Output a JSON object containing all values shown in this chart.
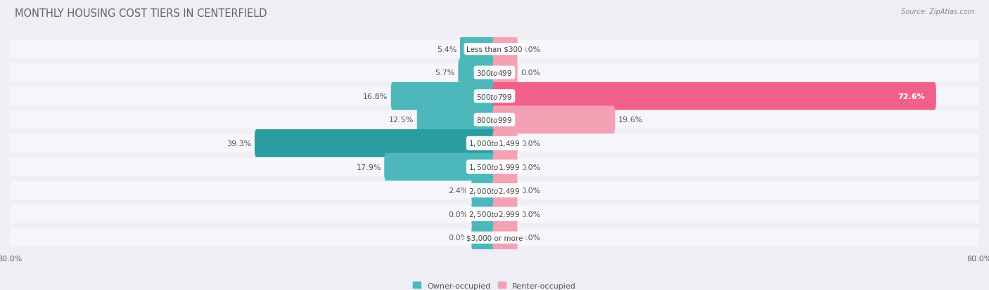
{
  "title": "MONTHLY HOUSING COST TIERS IN CENTERFIELD",
  "source": "Source: ZipAtlas.com",
  "categories": [
    "Less than $300",
    "$300 to $499",
    "$500 to $799",
    "$800 to $999",
    "$1,000 to $1,499",
    "$1,500 to $1,999",
    "$2,000 to $2,499",
    "$2,500 to $2,999",
    "$3,000 or more"
  ],
  "owner_values": [
    5.4,
    5.7,
    16.8,
    12.5,
    39.3,
    17.9,
    2.4,
    0.0,
    0.0
  ],
  "renter_values": [
    0.0,
    0.0,
    72.6,
    19.6,
    0.0,
    0.0,
    0.0,
    0.0,
    0.0
  ],
  "owner_color": "#4db8bc",
  "owner_color_dark": "#2a9da0",
  "renter_color": "#f4a0b5",
  "renter_color_hot": "#f0608a",
  "axis_limit": 80.0,
  "min_bar": 3.5,
  "background_color": "#eeeef4",
  "row_bg_color": "#f5f5fa",
  "row_alt_color": "#e8e8f0",
  "title_fontsize": 10.5,
  "label_fontsize": 8.0,
  "tick_fontsize": 8.0,
  "source_fontsize": 7.0,
  "cat_fontsize": 7.5
}
